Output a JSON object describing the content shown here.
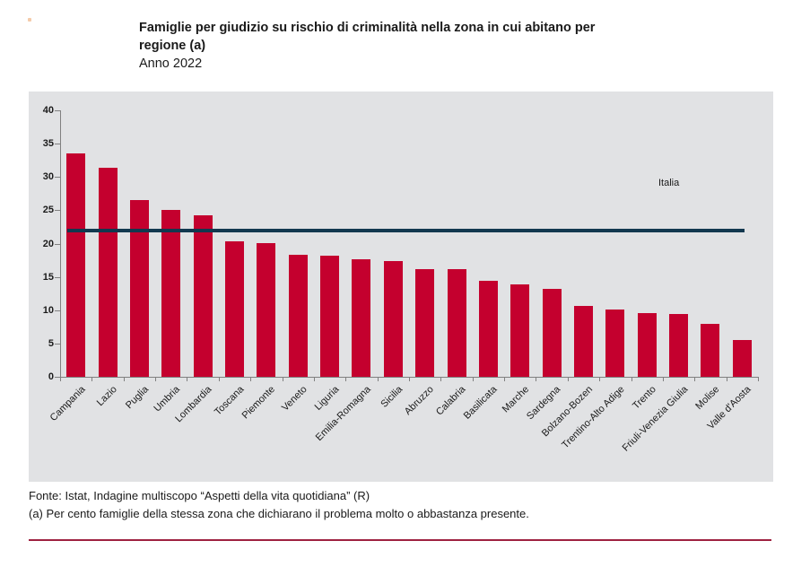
{
  "header": {
    "title_line1": "Famiglie per giudizio su rischio di criminalità nella zona in cui abitano per",
    "title_line2": "regione (a)",
    "subtitle": "Anno 2022"
  },
  "chart_data": {
    "type": "bar",
    "title": "Famiglie per giudizio su rischio di criminalità nella zona in cui abitano per regione (a)",
    "subtitle": "Anno 2022",
    "categories": [
      "Campania",
      "Lazio",
      "Puglia",
      "Umbria",
      "Lombardia",
      "Toscana",
      "Piemonte",
      "Veneto",
      "Liguria",
      "Emilia-Romagna",
      "Sicilia",
      "Abruzzo",
      "Calabria",
      "Basilicata",
      "Marche",
      "Sardegna",
      "Bolzano-Bozen",
      "Trentino-Alto Adige",
      "Trento",
      "Friuli-Venezia Giulia",
      "Molise",
      "Valle d'Aosta"
    ],
    "values": [
      33.5,
      31.4,
      26.5,
      25.1,
      24.2,
      20.3,
      20.0,
      18.3,
      18.2,
      17.7,
      17.4,
      16.2,
      16.1,
      14.4,
      13.9,
      13.2,
      10.6,
      10.1,
      9.5,
      9.4,
      8.0,
      5.5
    ],
    "reference_line": {
      "label": "Italia",
      "value": 21.9
    },
    "xlabel": "",
    "ylabel": "",
    "ylim": [
      0,
      40
    ],
    "y_ticks": [
      0,
      5,
      10,
      15,
      20,
      25,
      30,
      35,
      40
    ],
    "grid": false,
    "legend_position": "none",
    "colors": {
      "bar": "#C4002E",
      "reference_line": "#12384F",
      "plot_background": "#E1E2E4",
      "axis": "#808080",
      "text": "#1A1A1A"
    }
  },
  "footer": {
    "source": "Fonte: Istat, Indagine multiscopo “Aspetti della vita quotidiana” (R)",
    "note": "(a) Per cento famiglie della stessa zona che dichiarano il problema molto o abbastanza presente.",
    "divider_color": "#9E2140"
  }
}
